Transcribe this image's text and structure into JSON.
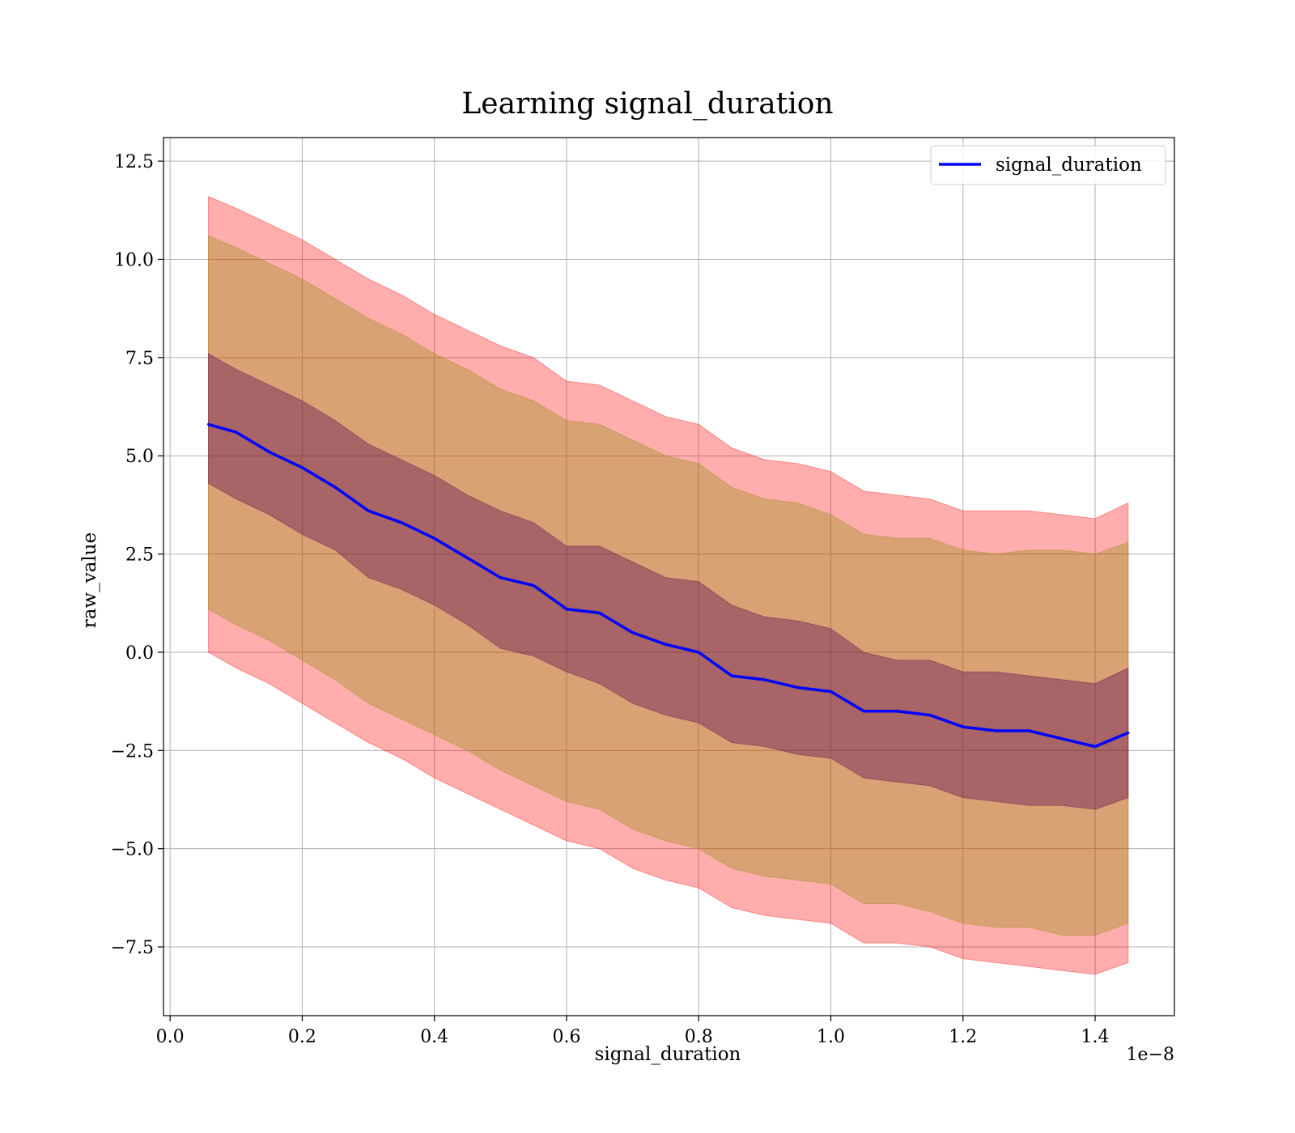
{
  "chart_data": {
    "type": "line",
    "title": "Learning signal_duration",
    "xlabel": "signal_duration",
    "ylabel": "raw_value",
    "x_offset_label": "1e−8",
    "xlim": [
      -1e-10,
      1.52e-08
    ],
    "ylim": [
      -9.25,
      13.1
    ],
    "x_ticks": [
      0.0,
      2e-09,
      4e-09,
      6e-09,
      8e-09,
      1e-08,
      1.2e-08,
      1.4e-08
    ],
    "x_tick_labels": [
      "0.0",
      "0.2",
      "0.4",
      "0.6",
      "0.8",
      "1.0",
      "1.2",
      "1.4"
    ],
    "y_ticks": [
      -7.5,
      -5.0,
      -2.5,
      0.0,
      2.5,
      5.0,
      7.5,
      10.0,
      12.5
    ],
    "y_tick_labels": [
      "−7.5",
      "−5.0",
      "−2.5",
      "0.0",
      "2.5",
      "5.0",
      "7.5",
      "10.0",
      "12.5"
    ],
    "grid": true,
    "legend": {
      "position": "top-right",
      "entries": [
        "signal_duration"
      ]
    },
    "colors": {
      "line": "#0000ff",
      "band_outer": "#ff0000",
      "band_middle": "#8c8c00",
      "band_inner": "#5a0050"
    },
    "series": [
      {
        "name": "signal_duration",
        "x": [
          5.8e-10,
          1e-09,
          1.5e-09,
          2e-09,
          2.5e-09,
          3e-09,
          3.5e-09,
          4e-09,
          4.5e-09,
          5e-09,
          5.5e-09,
          6e-09,
          6.5e-09,
          7e-09,
          7.5e-09,
          8e-09,
          8.5e-09,
          9e-09,
          9.5e-09,
          1e-08,
          1.05e-08,
          1.1e-08,
          1.15e-08,
          1.2e-08,
          1.25e-08,
          1.3e-08,
          1.35e-08,
          1.4e-08,
          1.45e-08
        ],
        "y": [
          5.8,
          5.6,
          5.1,
          4.7,
          4.2,
          3.6,
          3.3,
          2.9,
          2.4,
          1.9,
          1.7,
          1.1,
          1.0,
          0.5,
          0.2,
          0.0,
          -0.6,
          -0.7,
          -0.9,
          -1.0,
          -1.5,
          -1.5,
          -1.6,
          -1.9,
          -2.0,
          -2.0,
          -2.2,
          -2.4,
          -2.05
        ],
        "band_1sd": {
          "lower": [
            4.3,
            3.9,
            3.5,
            3.0,
            2.6,
            1.9,
            1.6,
            1.2,
            0.7,
            0.1,
            -0.1,
            -0.5,
            -0.8,
            -1.3,
            -1.6,
            -1.8,
            -2.3,
            -2.4,
            -2.6,
            -2.7,
            -3.2,
            -3.3,
            -3.4,
            -3.7,
            -3.8,
            -3.9,
            -3.9,
            -4.0,
            -3.7
          ],
          "upper": [
            7.6,
            7.2,
            6.8,
            6.4,
            5.9,
            5.3,
            4.9,
            4.5,
            4.0,
            3.6,
            3.3,
            2.7,
            2.7,
            2.3,
            1.9,
            1.8,
            1.2,
            0.9,
            0.8,
            0.6,
            0.0,
            -0.2,
            -0.2,
            -0.5,
            -0.5,
            -0.6,
            -0.7,
            -0.8,
            -0.4
          ]
        },
        "band_2sd": {
          "lower": [
            1.1,
            0.7,
            0.3,
            -0.2,
            -0.7,
            -1.3,
            -1.7,
            -2.1,
            -2.5,
            -3.0,
            -3.4,
            -3.8,
            -4.0,
            -4.5,
            -4.8,
            -5.0,
            -5.5,
            -5.7,
            -5.8,
            -5.9,
            -6.4,
            -6.4,
            -6.6,
            -6.9,
            -7.0,
            -7.0,
            -7.2,
            -7.2,
            -6.9
          ],
          "upper": [
            10.6,
            10.3,
            9.9,
            9.5,
            9.0,
            8.5,
            8.1,
            7.6,
            7.2,
            6.7,
            6.4,
            5.9,
            5.8,
            5.4,
            5.0,
            4.8,
            4.2,
            3.9,
            3.8,
            3.5,
            3.0,
            2.9,
            2.9,
            2.6,
            2.5,
            2.6,
            2.6,
            2.5,
            2.8
          ]
        },
        "band_3sd": {
          "lower": [
            0.0,
            -0.4,
            -0.8,
            -1.3,
            -1.8,
            -2.3,
            -2.7,
            -3.2,
            -3.6,
            -4.0,
            -4.4,
            -4.8,
            -5.0,
            -5.5,
            -5.8,
            -6.0,
            -6.5,
            -6.7,
            -6.8,
            -6.9,
            -7.4,
            -7.4,
            -7.5,
            -7.8,
            -7.9,
            -8.0,
            -8.1,
            -8.2,
            -7.9
          ],
          "upper": [
            11.6,
            11.3,
            10.9,
            10.5,
            10.0,
            9.5,
            9.1,
            8.6,
            8.2,
            7.8,
            7.5,
            6.9,
            6.8,
            6.4,
            6.0,
            5.8,
            5.2,
            4.9,
            4.8,
            4.6,
            4.1,
            4.0,
            3.9,
            3.6,
            3.6,
            3.6,
            3.5,
            3.4,
            3.8
          ]
        }
      }
    ]
  }
}
